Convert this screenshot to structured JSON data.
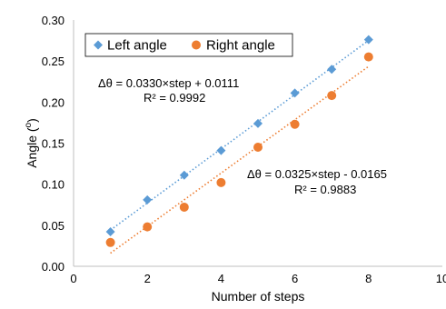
{
  "chart_data": {
    "type": "scatter",
    "xlabel": "Number of steps",
    "ylabel_main": "Angle (",
    "ylabel_sup": "o",
    "ylabel_close": ")",
    "xlim": [
      0,
      10
    ],
    "ylim": [
      0,
      0.3
    ],
    "x_ticks": [
      0,
      2,
      4,
      6,
      8,
      10
    ],
    "y_ticks": [
      0.0,
      0.05,
      0.1,
      0.15,
      0.2,
      0.25,
      0.3
    ],
    "x_tick_labels": [
      "0",
      "2",
      "4",
      "6",
      "8",
      "10"
    ],
    "y_tick_labels": [
      "0.00",
      "0.05",
      "0.10",
      "0.15",
      "0.20",
      "0.25",
      "0.30"
    ],
    "grid": false,
    "legend_position": "top-left",
    "series": [
      {
        "name": "Left angle",
        "marker": "diamond",
        "color": "#5B9BD5",
        "x": [
          1,
          2,
          3,
          4,
          5,
          6,
          7,
          8
        ],
        "y": [
          0.042,
          0.081,
          0.111,
          0.141,
          0.174,
          0.211,
          0.24,
          0.276
        ],
        "trendline": {
          "slope": 0.033,
          "intercept": 0.0111,
          "color": "#5B9BD5"
        },
        "equation": "Δθ = 0.0330×step  + 0.0111",
        "r2": "R² = 0.9992"
      },
      {
        "name": "Right angle",
        "marker": "circle",
        "color": "#ED7D31",
        "x": [
          1,
          2,
          3,
          4,
          5,
          6,
          7,
          8
        ],
        "y": [
          0.029,
          0.048,
          0.072,
          0.102,
          0.145,
          0.173,
          0.208,
          0.255
        ],
        "trendline": {
          "slope": 0.0325,
          "intercept": -0.0165,
          "color": "#ED7D31"
        },
        "equation": "Δθ = 0.0325×step  - 0.0165",
        "r2": "R² = 0.9883"
      }
    ]
  }
}
